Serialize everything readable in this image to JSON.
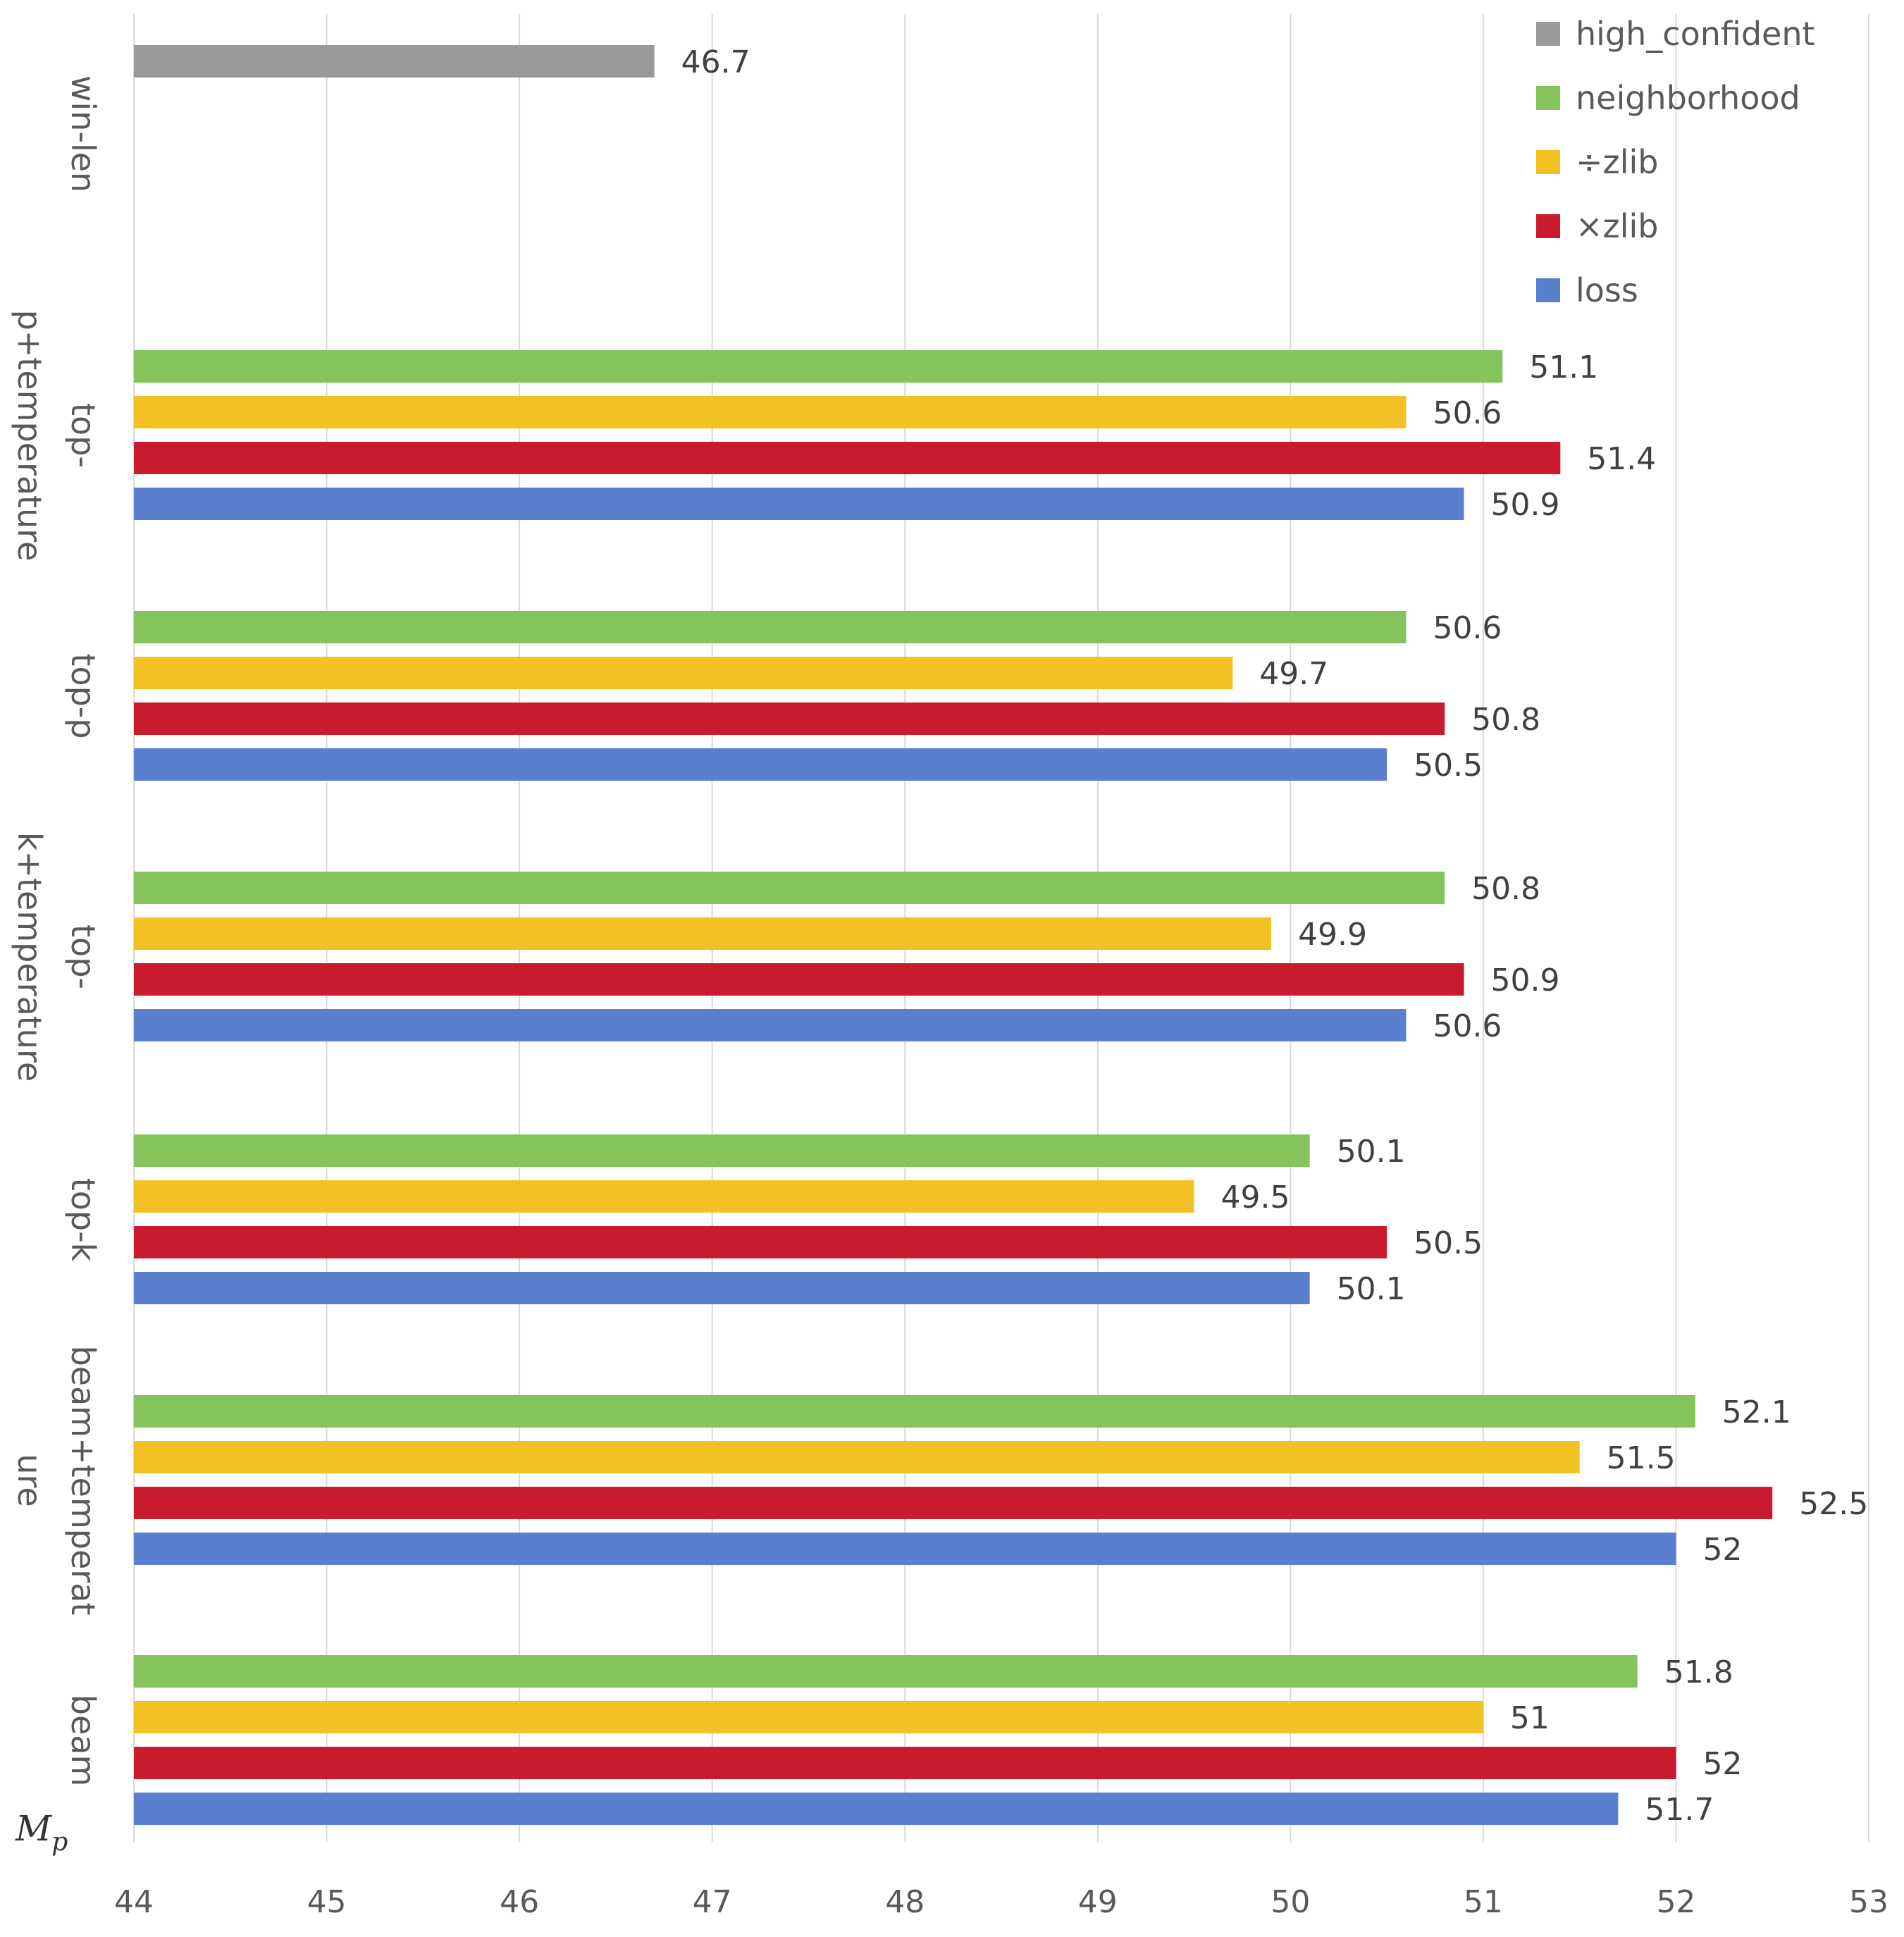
{
  "chart_data": {
    "type": "bar",
    "orientation": "horizontal",
    "title": "",
    "xlabel": "",
    "ylabel": "",
    "corner_label": {
      "main": "M",
      "sub": "p"
    },
    "xlim": [
      44,
      53
    ],
    "xticks": [
      44,
      45,
      46,
      47,
      48,
      49,
      50,
      51,
      52,
      53
    ],
    "grid": "vertical",
    "legend_position": "top-right",
    "categories": [
      {
        "label_lines": [
          "win-len"
        ]
      },
      {
        "label_lines": [
          "top-",
          "p+temperature"
        ]
      },
      {
        "label_lines": [
          "top-p"
        ]
      },
      {
        "label_lines": [
          "top-",
          "k+temperature"
        ]
      },
      {
        "label_lines": [
          "top-k"
        ]
      },
      {
        "label_lines": [
          "beam+temperat",
          "ure"
        ]
      },
      {
        "label_lines": [
          "beam"
        ]
      }
    ],
    "series": [
      {
        "name": "high_confident",
        "color": "#999999",
        "values": [
          46.7,
          null,
          null,
          null,
          null,
          null,
          null
        ]
      },
      {
        "name": "neighborhood",
        "color": "#84C45A",
        "values": [
          null,
          51.1,
          50.6,
          50.8,
          50.1,
          52.1,
          51.8
        ]
      },
      {
        "name": "÷zlib",
        "color": "#F2C224",
        "values": [
          null,
          50.6,
          49.7,
          49.9,
          49.5,
          51.5,
          51
        ]
      },
      {
        "name": "×zlib",
        "color": "#C81B2E",
        "values": [
          null,
          51.4,
          50.8,
          50.9,
          50.5,
          52.5,
          52
        ]
      },
      {
        "name": "loss",
        "color": "#5A7FCF",
        "values": [
          null,
          50.9,
          50.5,
          50.6,
          50.1,
          52,
          51.7
        ]
      }
    ]
  }
}
